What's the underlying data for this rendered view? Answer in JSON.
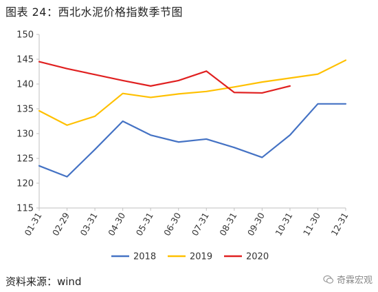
{
  "title": "图表 24：西北水泥价格指数季节图",
  "source": "资料来源：wind",
  "watermark": "奇霖宏观",
  "chart_data": {
    "type": "line",
    "title": "",
    "xlabel": "",
    "ylabel": "",
    "categories": [
      "01-31",
      "02-29",
      "03-31",
      "04-30",
      "05-31",
      "06-30",
      "07-31",
      "08-31",
      "09-30",
      "10-31",
      "11-30",
      "12-31"
    ],
    "ylim": [
      115,
      150
    ],
    "yticks": [
      115,
      120,
      125,
      130,
      135,
      140,
      145,
      150
    ],
    "grid": false,
    "legend": "bottom",
    "series": [
      {
        "name": "2018",
        "color": "#4472c4",
        "values": [
          123.5,
          121.3,
          126.8,
          132.5,
          129.7,
          128.3,
          128.9,
          127.2,
          125.2,
          129.7,
          136.0,
          136.0
        ]
      },
      {
        "name": "2019",
        "color": "#ffc000",
        "values": [
          134.6,
          131.7,
          133.5,
          138.1,
          137.3,
          138.0,
          138.5,
          139.4,
          140.4,
          141.2,
          142.0,
          144.8
        ]
      },
      {
        "name": "2020",
        "color": "#e02020",
        "values": [
          144.5,
          143.1,
          141.9,
          140.7,
          139.6,
          140.7,
          142.6,
          138.3,
          138.2,
          139.6,
          null,
          null
        ]
      }
    ]
  }
}
